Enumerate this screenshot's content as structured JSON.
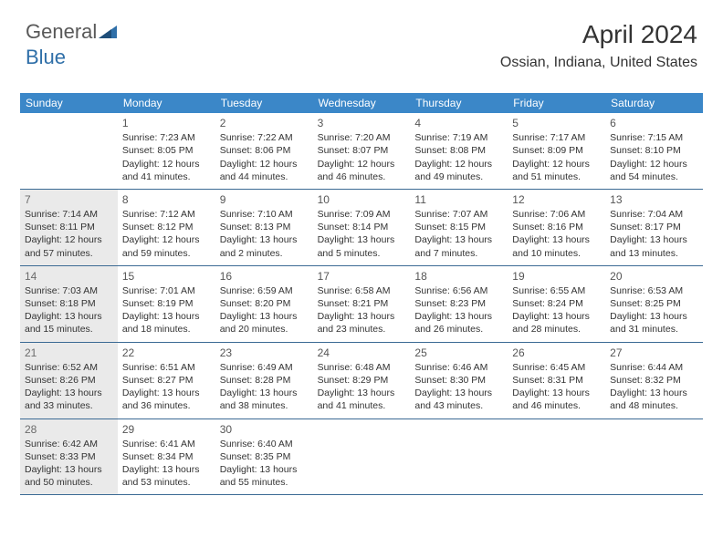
{
  "brand": {
    "name_part1": "General",
    "name_part2": "Blue"
  },
  "title": "April 2024",
  "location": "Ossian, Indiana, United States",
  "colors": {
    "header_bg": "#3b87c8",
    "header_text": "#ffffff",
    "rule": "#3b6a94",
    "shade_bg": "#eaeaea",
    "body_text": "#333333",
    "brand_gray": "#595959",
    "brand_blue": "#2f6fa8"
  },
  "typography": {
    "title_fontsize": 28,
    "location_fontsize": 16,
    "head_fontsize": 12,
    "daynum_fontsize": 12,
    "body_fontsize": 10.5
  },
  "day_headers": [
    "Sunday",
    "Monday",
    "Tuesday",
    "Wednesday",
    "Thursday",
    "Friday",
    "Saturday"
  ],
  "weeks": [
    [
      {
        "num": "",
        "lines": [],
        "shade": false
      },
      {
        "num": "1",
        "lines": [
          "Sunrise: 7:23 AM",
          "Sunset: 8:05 PM",
          "Daylight: 12 hours",
          "and 41 minutes."
        ],
        "shade": false
      },
      {
        "num": "2",
        "lines": [
          "Sunrise: 7:22 AM",
          "Sunset: 8:06 PM",
          "Daylight: 12 hours",
          "and 44 minutes."
        ],
        "shade": false
      },
      {
        "num": "3",
        "lines": [
          "Sunrise: 7:20 AM",
          "Sunset: 8:07 PM",
          "Daylight: 12 hours",
          "and 46 minutes."
        ],
        "shade": false
      },
      {
        "num": "4",
        "lines": [
          "Sunrise: 7:19 AM",
          "Sunset: 8:08 PM",
          "Daylight: 12 hours",
          "and 49 minutes."
        ],
        "shade": false
      },
      {
        "num": "5",
        "lines": [
          "Sunrise: 7:17 AM",
          "Sunset: 8:09 PM",
          "Daylight: 12 hours",
          "and 51 minutes."
        ],
        "shade": false
      },
      {
        "num": "6",
        "lines": [
          "Sunrise: 7:15 AM",
          "Sunset: 8:10 PM",
          "Daylight: 12 hours",
          "and 54 minutes."
        ],
        "shade": false
      }
    ],
    [
      {
        "num": "7",
        "lines": [
          "Sunrise: 7:14 AM",
          "Sunset: 8:11 PM",
          "Daylight: 12 hours",
          "and 57 minutes."
        ],
        "shade": true
      },
      {
        "num": "8",
        "lines": [
          "Sunrise: 7:12 AM",
          "Sunset: 8:12 PM",
          "Daylight: 12 hours",
          "and 59 minutes."
        ],
        "shade": false
      },
      {
        "num": "9",
        "lines": [
          "Sunrise: 7:10 AM",
          "Sunset: 8:13 PM",
          "Daylight: 13 hours",
          "and 2 minutes."
        ],
        "shade": false
      },
      {
        "num": "10",
        "lines": [
          "Sunrise: 7:09 AM",
          "Sunset: 8:14 PM",
          "Daylight: 13 hours",
          "and 5 minutes."
        ],
        "shade": false
      },
      {
        "num": "11",
        "lines": [
          "Sunrise: 7:07 AM",
          "Sunset: 8:15 PM",
          "Daylight: 13 hours",
          "and 7 minutes."
        ],
        "shade": false
      },
      {
        "num": "12",
        "lines": [
          "Sunrise: 7:06 AM",
          "Sunset: 8:16 PM",
          "Daylight: 13 hours",
          "and 10 minutes."
        ],
        "shade": false
      },
      {
        "num": "13",
        "lines": [
          "Sunrise: 7:04 AM",
          "Sunset: 8:17 PM",
          "Daylight: 13 hours",
          "and 13 minutes."
        ],
        "shade": false
      }
    ],
    [
      {
        "num": "14",
        "lines": [
          "Sunrise: 7:03 AM",
          "Sunset: 8:18 PM",
          "Daylight: 13 hours",
          "and 15 minutes."
        ],
        "shade": true
      },
      {
        "num": "15",
        "lines": [
          "Sunrise: 7:01 AM",
          "Sunset: 8:19 PM",
          "Daylight: 13 hours",
          "and 18 minutes."
        ],
        "shade": false
      },
      {
        "num": "16",
        "lines": [
          "Sunrise: 6:59 AM",
          "Sunset: 8:20 PM",
          "Daylight: 13 hours",
          "and 20 minutes."
        ],
        "shade": false
      },
      {
        "num": "17",
        "lines": [
          "Sunrise: 6:58 AM",
          "Sunset: 8:21 PM",
          "Daylight: 13 hours",
          "and 23 minutes."
        ],
        "shade": false
      },
      {
        "num": "18",
        "lines": [
          "Sunrise: 6:56 AM",
          "Sunset: 8:23 PM",
          "Daylight: 13 hours",
          "and 26 minutes."
        ],
        "shade": false
      },
      {
        "num": "19",
        "lines": [
          "Sunrise: 6:55 AM",
          "Sunset: 8:24 PM",
          "Daylight: 13 hours",
          "and 28 minutes."
        ],
        "shade": false
      },
      {
        "num": "20",
        "lines": [
          "Sunrise: 6:53 AM",
          "Sunset: 8:25 PM",
          "Daylight: 13 hours",
          "and 31 minutes."
        ],
        "shade": false
      }
    ],
    [
      {
        "num": "21",
        "lines": [
          "Sunrise: 6:52 AM",
          "Sunset: 8:26 PM",
          "Daylight: 13 hours",
          "and 33 minutes."
        ],
        "shade": true
      },
      {
        "num": "22",
        "lines": [
          "Sunrise: 6:51 AM",
          "Sunset: 8:27 PM",
          "Daylight: 13 hours",
          "and 36 minutes."
        ],
        "shade": false
      },
      {
        "num": "23",
        "lines": [
          "Sunrise: 6:49 AM",
          "Sunset: 8:28 PM",
          "Daylight: 13 hours",
          "and 38 minutes."
        ],
        "shade": false
      },
      {
        "num": "24",
        "lines": [
          "Sunrise: 6:48 AM",
          "Sunset: 8:29 PM",
          "Daylight: 13 hours",
          "and 41 minutes."
        ],
        "shade": false
      },
      {
        "num": "25",
        "lines": [
          "Sunrise: 6:46 AM",
          "Sunset: 8:30 PM",
          "Daylight: 13 hours",
          "and 43 minutes."
        ],
        "shade": false
      },
      {
        "num": "26",
        "lines": [
          "Sunrise: 6:45 AM",
          "Sunset: 8:31 PM",
          "Daylight: 13 hours",
          "and 46 minutes."
        ],
        "shade": false
      },
      {
        "num": "27",
        "lines": [
          "Sunrise: 6:44 AM",
          "Sunset: 8:32 PM",
          "Daylight: 13 hours",
          "and 48 minutes."
        ],
        "shade": false
      }
    ],
    [
      {
        "num": "28",
        "lines": [
          "Sunrise: 6:42 AM",
          "Sunset: 8:33 PM",
          "Daylight: 13 hours",
          "and 50 minutes."
        ],
        "shade": true
      },
      {
        "num": "29",
        "lines": [
          "Sunrise: 6:41 AM",
          "Sunset: 8:34 PM",
          "Daylight: 13 hours",
          "and 53 minutes."
        ],
        "shade": false
      },
      {
        "num": "30",
        "lines": [
          "Sunrise: 6:40 AM",
          "Sunset: 8:35 PM",
          "Daylight: 13 hours",
          "and 55 minutes."
        ],
        "shade": false
      },
      {
        "num": "",
        "lines": [],
        "shade": false
      },
      {
        "num": "",
        "lines": [],
        "shade": false
      },
      {
        "num": "",
        "lines": [],
        "shade": false
      },
      {
        "num": "",
        "lines": [],
        "shade": false
      }
    ]
  ]
}
